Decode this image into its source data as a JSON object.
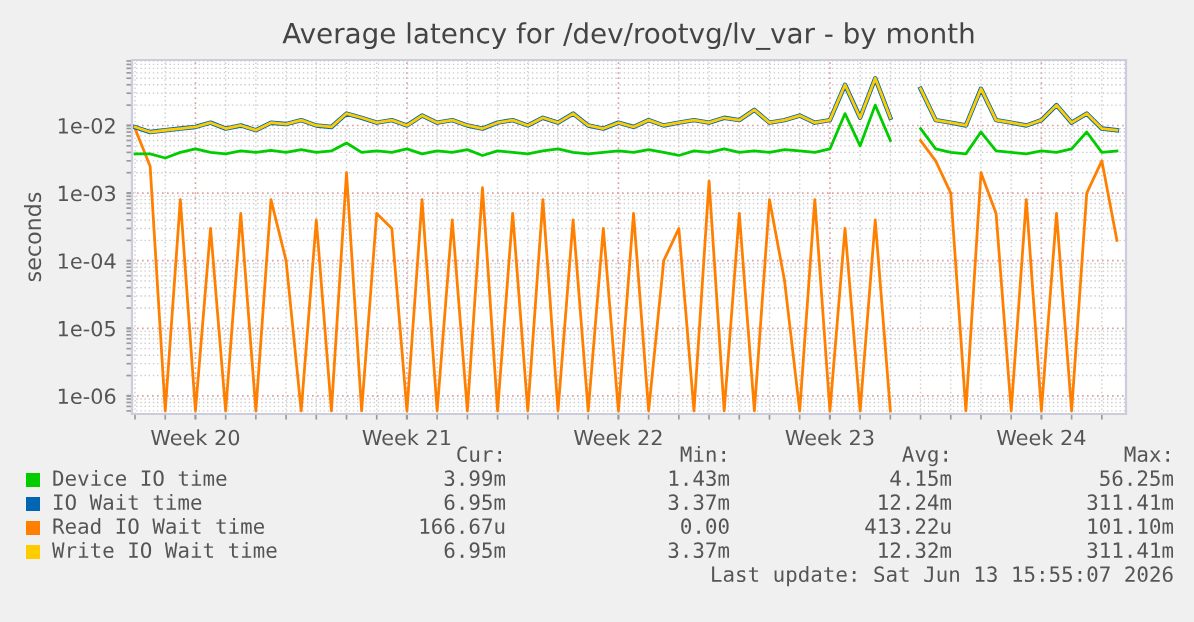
{
  "chart_data": {
    "type": "line",
    "title": "Average latency for /dev/rootvg/lv_var - by month",
    "ylabel": "seconds",
    "x": [
      "2026-05-09T00:00",
      "2026-05-09T12:00",
      "2026-05-10T00:00",
      "2026-05-10T12:00",
      "2026-05-11T00:00",
      "2026-05-11T12:00",
      "2026-05-12T00:00",
      "2026-05-12T12:00",
      "2026-05-13T00:00",
      "2026-05-13T12:00",
      "2026-05-14T00:00",
      "2026-05-14T12:00",
      "2026-05-15T00:00",
      "2026-05-15T12:00",
      "2026-05-16T00:00",
      "2026-05-16T12:00",
      "2026-05-17T00:00",
      "2026-05-17T12:00",
      "2026-05-18T00:00",
      "2026-05-18T12:00",
      "2026-05-19T00:00",
      "2026-05-19T12:00",
      "2026-05-20T00:00",
      "2026-05-20T12:00",
      "2026-05-21T00:00",
      "2026-05-21T12:00",
      "2026-05-22T00:00",
      "2026-05-22T12:00",
      "2026-05-23T00:00",
      "2026-05-23T12:00",
      "2026-05-24T00:00",
      "2026-05-24T12:00",
      "2026-05-25T00:00",
      "2026-05-25T12:00",
      "2026-05-26T00:00",
      "2026-05-26T12:00",
      "2026-05-27T00:00",
      "2026-05-27T12:00",
      "2026-05-28T00:00",
      "2026-05-28T12:00",
      "2026-05-29T00:00",
      "2026-05-29T12:00",
      "2026-05-30T00:00",
      "2026-05-30T12:00",
      "2026-05-31T00:00",
      "2026-05-31T12:00",
      "2026-06-01T00:00",
      "2026-06-01T12:00",
      "2026-06-02T00:00",
      "2026-06-02T12:00",
      "2026-06-03T00:00",
      "2026-06-03T12:00",
      "2026-06-04T00:00",
      "2026-06-04T12:00",
      "2026-06-05T00:00",
      "2026-06-05T12:00",
      "2026-06-06T00:00",
      "2026-06-06T12:00",
      "2026-06-07T00:00",
      "2026-06-07T12:00",
      "2026-06-08T00:00",
      "2026-06-08T12:00",
      "2026-06-09T00:00",
      "2026-06-09T12:00",
      "2026-06-10T00:00",
      "2026-06-10T12:00"
    ],
    "series": [
      {
        "name": "Device IO time",
        "color": "#00cc00",
        "values": [
          0.0038,
          0.0038,
          0.0033,
          0.004,
          0.0045,
          0.004,
          0.0038,
          0.0042,
          0.004,
          0.0043,
          0.004,
          0.0044,
          0.004,
          0.0042,
          0.0055,
          0.004,
          0.0042,
          0.004,
          0.0045,
          0.0038,
          0.0042,
          0.004,
          0.0044,
          0.0036,
          0.0042,
          0.004,
          0.0038,
          0.0042,
          0.0045,
          0.004,
          0.0038,
          0.004,
          0.0042,
          0.004,
          0.0044,
          0.004,
          0.0036,
          0.0042,
          0.004,
          0.0045,
          0.004,
          0.0042,
          0.004,
          0.0044,
          0.0042,
          0.004,
          0.0045,
          0.015,
          0.005,
          0.02,
          0.006,
          null,
          0.009,
          0.0045,
          0.004,
          0.0038,
          0.008,
          0.0042,
          0.004,
          0.0038,
          0.0042,
          0.004,
          0.0045,
          0.008,
          0.004,
          0.0042
        ]
      },
      {
        "name": "IO Wait time",
        "color": "#0066b3",
        "values": [
          0.0095,
          0.008,
          0.0085,
          0.009,
          0.0095,
          0.011,
          0.009,
          0.01,
          0.0085,
          0.011,
          0.0105,
          0.012,
          0.01,
          0.0095,
          0.015,
          0.013,
          0.011,
          0.012,
          0.01,
          0.014,
          0.011,
          0.012,
          0.01,
          0.009,
          0.011,
          0.012,
          0.01,
          0.013,
          0.011,
          0.015,
          0.01,
          0.009,
          0.011,
          0.0095,
          0.012,
          0.01,
          0.011,
          0.012,
          0.011,
          0.013,
          0.012,
          0.017,
          0.011,
          0.012,
          0.014,
          0.011,
          0.012,
          0.04,
          0.013,
          0.05,
          0.013,
          null,
          0.035,
          0.012,
          0.011,
          0.01,
          0.035,
          0.012,
          0.011,
          0.01,
          0.012,
          0.02,
          0.011,
          0.015,
          0.009,
          0.0085
        ]
      },
      {
        "name": "Read IO Wait time",
        "color": "#ff8000",
        "values": [
          0.009,
          0.0025,
          6e-07,
          0.0008,
          6e-07,
          0.0003,
          6e-07,
          0.0005,
          6e-07,
          0.0008,
          0.0001,
          6e-07,
          0.0004,
          6e-07,
          0.002,
          6e-07,
          0.0005,
          0.0003,
          6e-07,
          0.0008,
          6e-07,
          0.0004,
          6e-07,
          0.0012,
          6e-07,
          0.0005,
          6e-07,
          0.0008,
          6e-07,
          0.0004,
          6e-07,
          0.0003,
          6e-07,
          0.0005,
          6e-07,
          0.0001,
          0.0003,
          6e-07,
          0.0015,
          6e-07,
          0.0005,
          6e-07,
          0.0008,
          5e-05,
          6e-07,
          0.0008,
          6e-07,
          0.0003,
          6e-07,
          0.0004,
          6e-07,
          null,
          0.006,
          0.003,
          0.001,
          6e-07,
          0.002,
          0.0005,
          6e-07,
          0.0008,
          6e-07,
          0.0005,
          6e-07,
          0.001,
          0.003,
          0.0002
        ]
      },
      {
        "name": "Write IO Wait time",
        "color": "#ffcc00",
        "values": [
          0.0095,
          0.008,
          0.0085,
          0.009,
          0.0095,
          0.011,
          0.009,
          0.01,
          0.0085,
          0.011,
          0.0105,
          0.012,
          0.01,
          0.0095,
          0.015,
          0.013,
          0.011,
          0.012,
          0.01,
          0.014,
          0.011,
          0.012,
          0.01,
          0.009,
          0.011,
          0.012,
          0.01,
          0.013,
          0.011,
          0.015,
          0.01,
          0.009,
          0.011,
          0.0095,
          0.012,
          0.01,
          0.011,
          0.012,
          0.011,
          0.013,
          0.012,
          0.017,
          0.011,
          0.012,
          0.014,
          0.011,
          0.012,
          0.04,
          0.013,
          0.05,
          0.013,
          null,
          0.035,
          0.012,
          0.011,
          0.01,
          0.035,
          0.012,
          0.011,
          0.01,
          0.012,
          0.02,
          0.011,
          0.015,
          0.009,
          0.0085
        ]
      }
    ],
    "log": "y",
    "xlim": [
      "2026-05-08T21:36",
      "2026-06-10T19:12"
    ],
    "ylim": [
      5.4e-07,
      0.093
    ],
    "xticks": [
      {
        "value": "2026-05-11",
        "label": "Week 20"
      },
      {
        "value": "2026-05-18",
        "label": "Week 21"
      },
      {
        "value": "2026-05-25",
        "label": "Week 22"
      },
      {
        "value": "2026-06-01",
        "label": "Week 23"
      },
      {
        "value": "2026-06-08",
        "label": "Week 24"
      }
    ],
    "yticks": [
      {
        "value": 1e-06,
        "label": "1e-06"
      },
      {
        "value": 1e-05,
        "label": "1e-05"
      },
      {
        "value": 0.0001,
        "label": "1e-04"
      },
      {
        "value": 0.001,
        "label": "1e-03"
      },
      {
        "value": 0.01,
        "label": "1e-02"
      }
    ],
    "grid": true,
    "legend": "bottom",
    "annotations": [
      "Cur:",
      "Min:",
      "Avg:",
      "Max:",
      "3.99m",
      "1.43m",
      "4.15m",
      "56.25m",
      "6.95m",
      "3.37m",
      "12.24m",
      "311.41m",
      "166.67u",
      "0.00",
      "413.22u",
      "101.10m",
      "6.95m",
      "3.37m",
      "12.32m",
      "311.41m",
      "Last update: Sat Jun 13 15:55:07 2026"
    ]
  }
}
